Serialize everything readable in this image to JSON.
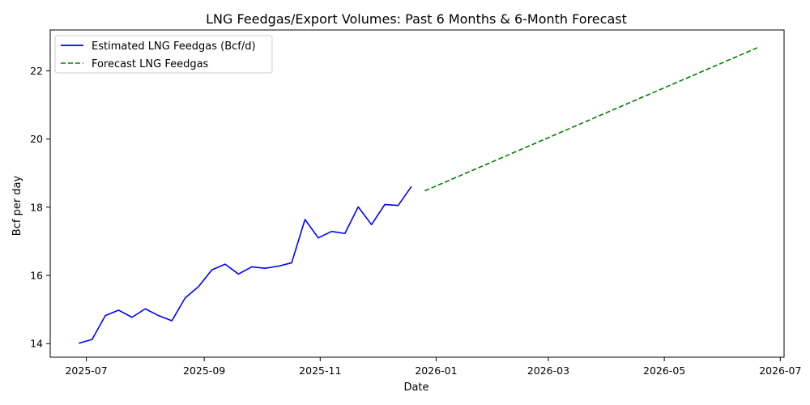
{
  "chart_data": {
    "type": "line",
    "title": "LNG Feedgas/Export Volumes: Past 6 Months & 6-Month Forecast",
    "xlabel": "Date",
    "ylabel": "Bcf per day",
    "xlim": [
      "2025-06-12",
      "2026-07-03"
    ],
    "ylim": [
      13.6,
      23.2
    ],
    "x_ticks": [
      {
        "date": "2025-07-01",
        "label": "2025-07"
      },
      {
        "date": "2025-09-01",
        "label": "2025-09"
      },
      {
        "date": "2025-11-01",
        "label": "2025-11"
      },
      {
        "date": "2026-01-01",
        "label": "2026-01"
      },
      {
        "date": "2026-03-01",
        "label": "2026-03"
      },
      {
        "date": "2026-05-01",
        "label": "2026-05"
      },
      {
        "date": "2026-07-01",
        "label": "2026-07"
      }
    ],
    "y_ticks": [
      14,
      16,
      18,
      20,
      22
    ],
    "grid": false,
    "legend_position": "top-left",
    "series": [
      {
        "name": "Estimated LNG Feedgas (Bcf/d)",
        "color": "#0000ff",
        "style": "solid",
        "x": [
          "2025-06-27",
          "2025-07-04",
          "2025-07-11",
          "2025-07-18",
          "2025-07-25",
          "2025-08-01",
          "2025-08-08",
          "2025-08-15",
          "2025-08-22",
          "2025-08-29",
          "2025-09-05",
          "2025-09-12",
          "2025-09-19",
          "2025-09-26",
          "2025-10-03",
          "2025-10-10",
          "2025-10-17",
          "2025-10-24",
          "2025-10-31",
          "2025-11-07",
          "2025-11-14",
          "2025-11-21",
          "2025-11-28",
          "2025-12-05",
          "2025-12-12",
          "2025-12-19"
        ],
        "y": [
          14.01,
          14.12,
          14.82,
          14.98,
          14.77,
          15.02,
          14.82,
          14.67,
          15.34,
          15.67,
          16.16,
          16.33,
          16.04,
          16.25,
          16.21,
          16.27,
          16.37,
          17.64,
          17.1,
          17.29,
          17.23,
          18.01,
          17.49,
          18.08,
          18.05,
          18.61
        ]
      },
      {
        "name": "Forecast LNG Feedgas",
        "color": "#008000",
        "style": "dashed",
        "x": [
          "2025-12-26",
          "2026-06-19"
        ],
        "y": [
          18.48,
          22.68
        ]
      }
    ]
  }
}
